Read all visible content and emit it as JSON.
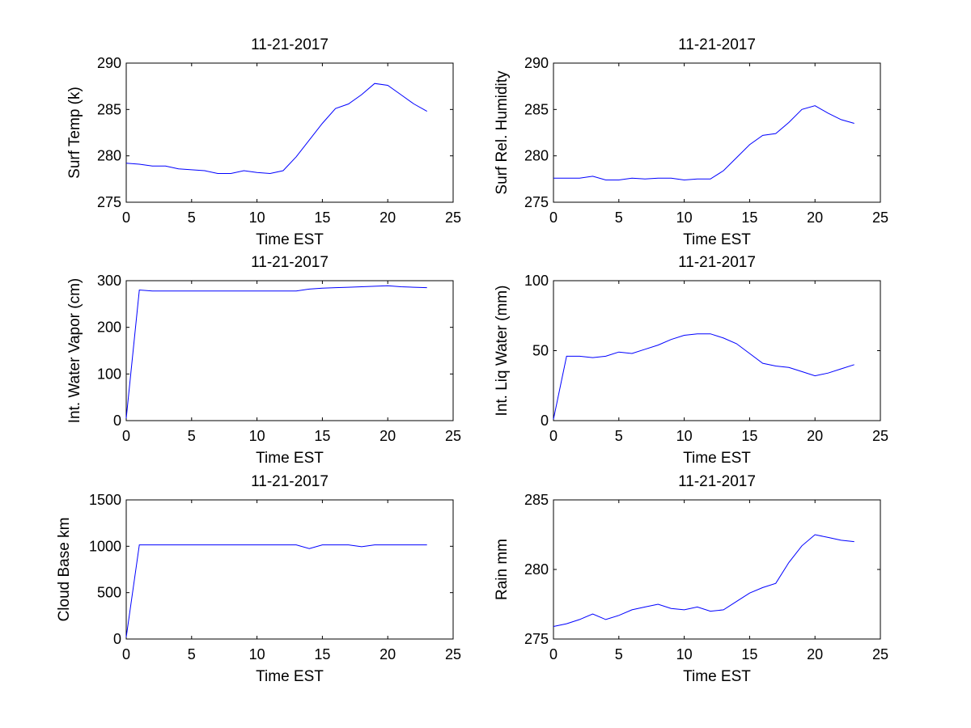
{
  "chart_data": [
    {
      "type": "line",
      "title": "11-21-2017",
      "xlabel": "Time EST",
      "ylabel": "Surf Temp (k)",
      "xlim": [
        0,
        25
      ],
      "ylim": [
        275,
        290
      ],
      "xticks": [
        "0",
        "5",
        "10",
        "15",
        "20",
        "25"
      ],
      "yticks": [
        "275",
        "280",
        "285",
        "290"
      ],
      "grid": false,
      "line_color": "#0000ff",
      "series": [
        {
          "x": [
            0,
            1,
            2,
            3,
            4,
            5,
            6,
            7,
            8,
            9,
            10,
            11,
            12,
            13,
            14,
            15,
            16,
            17,
            18,
            19,
            20,
            21,
            22,
            23
          ],
          "y": [
            279.2,
            279.1,
            278.9,
            278.9,
            278.6,
            278.5,
            278.4,
            278.1,
            278.1,
            278.4,
            278.2,
            278.1,
            278.4,
            279.9,
            281.7,
            283.5,
            285.1,
            285.6,
            286.6,
            287.8,
            287.6,
            286.6,
            285.6,
            284.8
          ]
        }
      ]
    },
    {
      "type": "line",
      "title": "11-21-2017",
      "xlabel": "Time EST",
      "ylabel": "Surf Rel. Humidity",
      "xlim": [
        0,
        25
      ],
      "ylim": [
        275,
        290
      ],
      "xticks": [
        "0",
        "5",
        "10",
        "15",
        "20",
        "25"
      ],
      "yticks": [
        "275",
        "280",
        "285",
        "290"
      ],
      "grid": false,
      "line_color": "#0000ff",
      "series": [
        {
          "x": [
            0,
            1,
            2,
            3,
            4,
            5,
            6,
            7,
            8,
            9,
            10,
            11,
            12,
            13,
            14,
            15,
            16,
            17,
            18,
            19,
            20,
            21,
            22,
            23
          ],
          "y": [
            277.6,
            277.6,
            277.6,
            277.8,
            277.4,
            277.4,
            277.6,
            277.5,
            277.6,
            277.6,
            277.4,
            277.5,
            277.5,
            278.4,
            279.8,
            281.2,
            282.2,
            282.4,
            283.6,
            285.0,
            285.4,
            284.6,
            283.9,
            283.5
          ]
        }
      ]
    },
    {
      "type": "line",
      "title": "11-21-2017",
      "xlabel": "Time EST",
      "ylabel": "Int. Water Vapor (cm)",
      "xlim": [
        0,
        25
      ],
      "ylim": [
        0,
        300
      ],
      "xticks": [
        "0",
        "5",
        "10",
        "15",
        "20",
        "25"
      ],
      "yticks": [
        "0",
        "100",
        "200",
        "300"
      ],
      "grid": false,
      "line_color": "#0000ff",
      "series": [
        {
          "x": [
            0,
            1,
            2,
            3,
            4,
            5,
            6,
            7,
            8,
            9,
            10,
            11,
            12,
            13,
            14,
            15,
            16,
            17,
            18,
            19,
            20,
            21,
            22,
            23
          ],
          "y": [
            5,
            280,
            278,
            278,
            278,
            278,
            278,
            278,
            278,
            278,
            278,
            278,
            278,
            278,
            282,
            284,
            285,
            286,
            287,
            288,
            289,
            287,
            286,
            285
          ]
        }
      ]
    },
    {
      "type": "line",
      "title": "11-21-2017",
      "xlabel": "Time EST",
      "ylabel": "Int. Liq Water (mm)",
      "xlim": [
        0,
        25
      ],
      "ylim": [
        0,
        100
      ],
      "xticks": [
        "0",
        "5",
        "10",
        "15",
        "20",
        "25"
      ],
      "yticks": [
        "0",
        "50",
        "100"
      ],
      "grid": false,
      "line_color": "#0000ff",
      "series": [
        {
          "x": [
            0,
            1,
            2,
            3,
            4,
            5,
            6,
            7,
            8,
            9,
            10,
            11,
            12,
            13,
            14,
            15,
            16,
            17,
            18,
            19,
            20,
            21,
            22,
            23
          ],
          "y": [
            1,
            46,
            46,
            45,
            46,
            49,
            48,
            51,
            54,
            58,
            61,
            62,
            62,
            59,
            55,
            48,
            41,
            39,
            38,
            35,
            32,
            34,
            37,
            40
          ]
        }
      ]
    },
    {
      "type": "line",
      "title": "11-21-2017",
      "xlabel": "Time EST",
      "ylabel": "Cloud Base km",
      "xlim": [
        0,
        25
      ],
      "ylim": [
        0,
        1500
      ],
      "xticks": [
        "0",
        "5",
        "10",
        "15",
        "20",
        "25"
      ],
      "yticks": [
        "0",
        "500",
        "1000",
        "1500"
      ],
      "grid": false,
      "line_color": "#0000ff",
      "series": [
        {
          "x": [
            0,
            1,
            2,
            3,
            4,
            5,
            6,
            7,
            8,
            9,
            10,
            11,
            12,
            13,
            14,
            15,
            16,
            17,
            18,
            19,
            20,
            21,
            22,
            23
          ],
          "y": [
            20,
            1015,
            1015,
            1015,
            1015,
            1015,
            1015,
            1015,
            1015,
            1015,
            1015,
            1015,
            1015,
            1015,
            975,
            1015,
            1015,
            1015,
            995,
            1015,
            1015,
            1015,
            1015,
            1015
          ]
        }
      ]
    },
    {
      "type": "line",
      "title": "11-21-2017",
      "xlabel": "Time EST",
      "ylabel": "Rain mm",
      "xlim": [
        0,
        25
      ],
      "ylim": [
        275,
        285
      ],
      "xticks": [
        "0",
        "5",
        "10",
        "15",
        "20",
        "25"
      ],
      "yticks": [
        "275",
        "280",
        "285"
      ],
      "grid": false,
      "line_color": "#0000ff",
      "series": [
        {
          "x": [
            0,
            1,
            2,
            3,
            4,
            5,
            6,
            7,
            8,
            9,
            10,
            11,
            12,
            13,
            14,
            15,
            16,
            17,
            18,
            19,
            20,
            21,
            22,
            23
          ],
          "y": [
            275.9,
            276.1,
            276.4,
            276.8,
            276.4,
            276.7,
            277.1,
            277.3,
            277.5,
            277.2,
            277.1,
            277.3,
            277.0,
            277.1,
            277.7,
            278.3,
            278.7,
            279.0,
            280.5,
            281.7,
            282.5,
            282.3,
            282.1,
            282.0
          ]
        }
      ]
    }
  ]
}
